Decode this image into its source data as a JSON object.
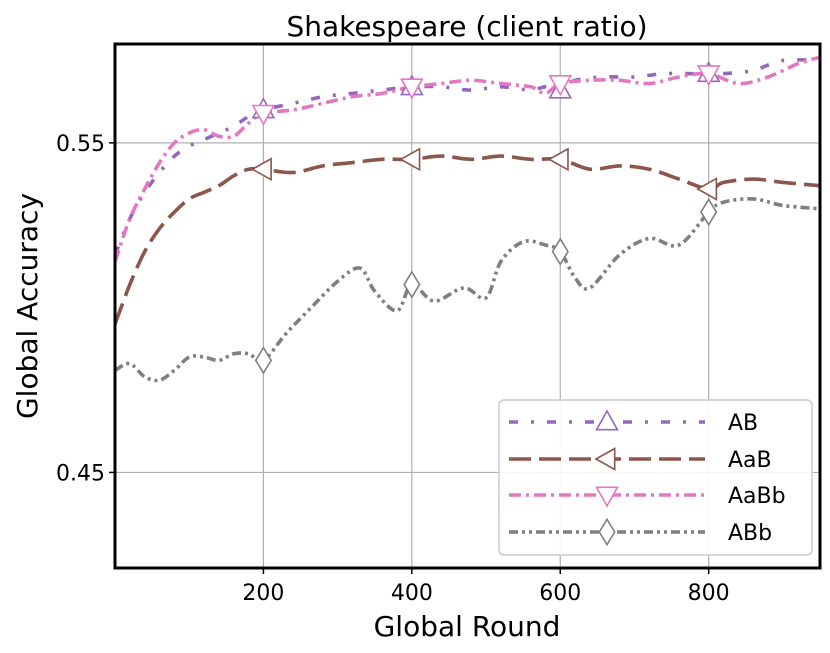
{
  "chart_data": {
    "type": "line",
    "title": "Shakespeare (client ratio)",
    "xlabel": "Global Round",
    "ylabel": "Global Accuracy",
    "xlim": [
      0,
      950
    ],
    "ylim": [
      0.421,
      0.58
    ],
    "xticks": [
      200,
      400,
      600,
      800
    ],
    "xtick_labels": [
      "200",
      "400",
      "600",
      "800"
    ],
    "yticks": [
      0.45,
      0.55
    ],
    "ytick_labels": [
      "0.45",
      "0.55"
    ],
    "grid": true,
    "legend_position": "lower-right",
    "series": [
      {
        "name": "AB",
        "color": "#9467bd",
        "linestyle": "dashdot-sparse",
        "marker": "triangle-up",
        "marker_x": [
          200,
          400,
          600,
          800
        ],
        "x": [
          0,
          20,
          40,
          60,
          80,
          100,
          120,
          140,
          160,
          180,
          200,
          240,
          280,
          320,
          360,
          400,
          440,
          480,
          520,
          560,
          580,
          600,
          620,
          660,
          700,
          740,
          780,
          800,
          820,
          860,
          900,
          950
        ],
        "y": [
          0.516,
          0.527,
          0.535,
          0.541,
          0.546,
          0.549,
          0.551,
          0.553,
          0.555,
          0.558,
          0.56,
          0.562,
          0.564,
          0.565,
          0.566,
          0.567,
          0.567,
          0.566,
          0.567,
          0.566,
          0.567,
          0.566,
          0.569,
          0.57,
          0.57,
          0.571,
          0.571,
          0.571,
          0.571,
          0.572,
          0.575,
          0.575
        ]
      },
      {
        "name": "AaB",
        "color": "#8c564b",
        "linestyle": "dashed",
        "marker": "triangle-left",
        "marker_x": [
          200,
          400,
          600,
          800
        ],
        "x": [
          0,
          20,
          40,
          60,
          80,
          100,
          120,
          140,
          160,
          180,
          200,
          240,
          280,
          320,
          360,
          400,
          440,
          480,
          520,
          560,
          600,
          640,
          680,
          720,
          760,
          800,
          820,
          860,
          900,
          950
        ],
        "y": [
          0.495,
          0.507,
          0.517,
          0.524,
          0.529,
          0.533,
          0.535,
          0.537,
          0.54,
          0.542,
          0.542,
          0.541,
          0.543,
          0.544,
          0.545,
          0.545,
          0.546,
          0.545,
          0.546,
          0.545,
          0.545,
          0.542,
          0.543,
          0.542,
          0.539,
          0.536,
          0.538,
          0.539,
          0.538,
          0.537
        ]
      },
      {
        "name": "AaBb",
        "color": "#e377c2",
        "linestyle": "dashdot-dense",
        "marker": "triangle-down",
        "marker_x": [
          200,
          400,
          600,
          800
        ],
        "x": [
          0,
          20,
          40,
          60,
          80,
          100,
          120,
          140,
          160,
          180,
          200,
          240,
          280,
          320,
          360,
          400,
          440,
          480,
          520,
          560,
          580,
          600,
          640,
          680,
          720,
          760,
          800,
          840,
          880,
          920,
          950
        ],
        "y": [
          0.514,
          0.527,
          0.536,
          0.544,
          0.55,
          0.553,
          0.554,
          0.552,
          0.552,
          0.556,
          0.559,
          0.56,
          0.562,
          0.564,
          0.565,
          0.567,
          0.568,
          0.569,
          0.568,
          0.567,
          0.565,
          0.568,
          0.569,
          0.569,
          0.568,
          0.57,
          0.571,
          0.568,
          0.57,
          0.574,
          0.576
        ]
      },
      {
        "name": "ABb",
        "color": "#7f7f7f",
        "linestyle": "dash-dot-dot",
        "marker": "diamond",
        "marker_x": [
          200,
          400,
          600,
          800
        ],
        "x": [
          0,
          20,
          40,
          60,
          80,
          100,
          120,
          140,
          160,
          180,
          200,
          230,
          260,
          300,
          330,
          350,
          380,
          400,
          430,
          470,
          500,
          520,
          550,
          580,
          600,
          620,
          640,
          680,
          720,
          760,
          800,
          820,
          860,
          900,
          950
        ],
        "y": [
          0.481,
          0.483,
          0.479,
          0.478,
          0.481,
          0.485,
          0.485,
          0.484,
          0.486,
          0.486,
          0.484,
          0.492,
          0.499,
          0.508,
          0.512,
          0.505,
          0.499,
          0.507,
          0.502,
          0.506,
          0.503,
          0.514,
          0.52,
          0.519,
          0.517,
          0.509,
          0.506,
          0.516,
          0.521,
          0.519,
          0.529,
          0.532,
          0.533,
          0.531,
          0.53
        ]
      }
    ]
  }
}
